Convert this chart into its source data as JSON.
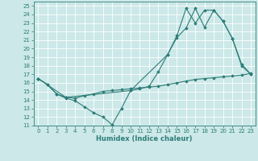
{
  "xlabel": "Humidex (Indice chaleur)",
  "xlim": [
    -0.5,
    23.5
  ],
  "ylim": [
    11,
    25.5
  ],
  "yticks": [
    11,
    12,
    13,
    14,
    15,
    16,
    17,
    18,
    19,
    20,
    21,
    22,
    23,
    24,
    25
  ],
  "xticks": [
    0,
    1,
    2,
    3,
    4,
    5,
    6,
    7,
    8,
    9,
    10,
    11,
    12,
    13,
    14,
    15,
    16,
    17,
    18,
    19,
    20,
    21,
    22,
    23
  ],
  "line_color": "#2d7d78",
  "bg_color": "#cce8e8",
  "grid_color": "#ffffff",
  "lines": [
    {
      "x": [
        0,
        1,
        2,
        3,
        4,
        5,
        6,
        7,
        8,
        9,
        10,
        11,
        12,
        13,
        14,
        15,
        16,
        17,
        18,
        19,
        20,
        21,
        22,
        23
      ],
      "y": [
        16.5,
        15.8,
        14.7,
        14.2,
        13.9,
        13.2,
        12.5,
        12.0,
        11.1,
        13.0,
        15.1,
        15.3,
        15.6,
        17.3,
        19.3,
        21.3,
        22.4,
        24.7,
        22.5,
        24.5,
        23.2,
        21.2,
        18.2,
        17.0
      ]
    },
    {
      "x": [
        0,
        1,
        2,
        3,
        4,
        5,
        6,
        7,
        8,
        9,
        10,
        11,
        12,
        13,
        14,
        15,
        16,
        17,
        18,
        19,
        20,
        21,
        22,
        23
      ],
      "y": [
        16.5,
        15.8,
        14.7,
        14.3,
        14.2,
        14.5,
        14.7,
        15.0,
        15.1,
        15.2,
        15.3,
        15.4,
        15.5,
        15.6,
        15.8,
        16.0,
        16.2,
        16.4,
        16.5,
        16.6,
        16.7,
        16.8,
        16.9,
        17.1
      ]
    },
    {
      "x": [
        0,
        3,
        10,
        14,
        15,
        16,
        17,
        18,
        19,
        20,
        21,
        22,
        23
      ],
      "y": [
        16.5,
        14.3,
        15.1,
        19.3,
        21.5,
        24.7,
        23.0,
        24.5,
        24.5,
        23.2,
        21.2,
        18.0,
        17.0
      ]
    }
  ]
}
